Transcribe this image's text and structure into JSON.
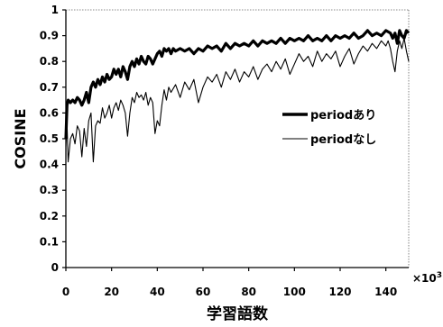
{
  "chart_data": {
    "type": "line",
    "xlabel": "学習語数",
    "ylabel": "COSINE",
    "x_multiplier": {
      "base": "×10",
      "exponent": "3"
    },
    "xlim": [
      0,
      150
    ],
    "ylim": [
      0,
      1
    ],
    "x_ticks": [
      0,
      20,
      40,
      60,
      80,
      100,
      120,
      140
    ],
    "y_ticks": [
      0,
      0.1,
      0.2,
      0.3,
      0.4,
      0.5,
      0.6,
      0.7,
      0.8,
      0.9,
      1
    ],
    "y_tick_labels": [
      "0",
      "0.1",
      "0.2",
      "0.3",
      "0.4",
      "0.5",
      "0.6",
      "0.7",
      "0.8",
      "0.9",
      "1"
    ],
    "grid": false,
    "legend_position": "right",
    "series": [
      {
        "name": "periodあり",
        "style": "thick",
        "color": "#000000",
        "points": [
          [
            0,
            0.5
          ],
          [
            0.5,
            0.63
          ],
          [
            1,
            0.65
          ],
          [
            2,
            0.64
          ],
          [
            3,
            0.65
          ],
          [
            4,
            0.64
          ],
          [
            5,
            0.66
          ],
          [
            6,
            0.65
          ],
          [
            7,
            0.63
          ],
          [
            8,
            0.65
          ],
          [
            9,
            0.68
          ],
          [
            10,
            0.64
          ],
          [
            11,
            0.7
          ],
          [
            12,
            0.72
          ],
          [
            13,
            0.7
          ],
          [
            14,
            0.73
          ],
          [
            15,
            0.71
          ],
          [
            16,
            0.74
          ],
          [
            17,
            0.72
          ],
          [
            18,
            0.75
          ],
          [
            19,
            0.73
          ],
          [
            20,
            0.74
          ],
          [
            21,
            0.77
          ],
          [
            22,
            0.75
          ],
          [
            23,
            0.77
          ],
          [
            24,
            0.74
          ],
          [
            25,
            0.78
          ],
          [
            26,
            0.76
          ],
          [
            27,
            0.73
          ],
          [
            28,
            0.78
          ],
          [
            29,
            0.8
          ],
          [
            30,
            0.78
          ],
          [
            31,
            0.81
          ],
          [
            32,
            0.79
          ],
          [
            33,
            0.82
          ],
          [
            34,
            0.8
          ],
          [
            35,
            0.79
          ],
          [
            36,
            0.82
          ],
          [
            37,
            0.81
          ],
          [
            38,
            0.79
          ],
          [
            39,
            0.81
          ],
          [
            40,
            0.83
          ],
          [
            41,
            0.84
          ],
          [
            42,
            0.82
          ],
          [
            43,
            0.85
          ],
          [
            44,
            0.84
          ],
          [
            45,
            0.85
          ],
          [
            46,
            0.83
          ],
          [
            47,
            0.85
          ],
          [
            48,
            0.84
          ],
          [
            50,
            0.85
          ],
          [
            52,
            0.84
          ],
          [
            54,
            0.85
          ],
          [
            56,
            0.83
          ],
          [
            58,
            0.85
          ],
          [
            60,
            0.84
          ],
          [
            62,
            0.86
          ],
          [
            64,
            0.85
          ],
          [
            66,
            0.86
          ],
          [
            68,
            0.84
          ],
          [
            70,
            0.87
          ],
          [
            72,
            0.85
          ],
          [
            74,
            0.87
          ],
          [
            76,
            0.86
          ],
          [
            78,
            0.87
          ],
          [
            80,
            0.86
          ],
          [
            82,
            0.88
          ],
          [
            84,
            0.86
          ],
          [
            86,
            0.88
          ],
          [
            88,
            0.87
          ],
          [
            90,
            0.88
          ],
          [
            92,
            0.87
          ],
          [
            94,
            0.89
          ],
          [
            96,
            0.87
          ],
          [
            98,
            0.89
          ],
          [
            100,
            0.88
          ],
          [
            102,
            0.89
          ],
          [
            104,
            0.88
          ],
          [
            106,
            0.9
          ],
          [
            108,
            0.88
          ],
          [
            110,
            0.89
          ],
          [
            112,
            0.88
          ],
          [
            114,
            0.9
          ],
          [
            116,
            0.88
          ],
          [
            118,
            0.9
          ],
          [
            120,
            0.89
          ],
          [
            122,
            0.9
          ],
          [
            124,
            0.89
          ],
          [
            126,
            0.91
          ],
          [
            128,
            0.89
          ],
          [
            130,
            0.9
          ],
          [
            132,
            0.92
          ],
          [
            134,
            0.9
          ],
          [
            136,
            0.91
          ],
          [
            138,
            0.9
          ],
          [
            140,
            0.92
          ],
          [
            142,
            0.91
          ],
          [
            143,
            0.89
          ],
          [
            144,
            0.91
          ],
          [
            145,
            0.87
          ],
          [
            146,
            0.92
          ],
          [
            147,
            0.9
          ],
          [
            148,
            0.89
          ],
          [
            149,
            0.92
          ],
          [
            150,
            0.91
          ]
        ]
      },
      {
        "name": "periodなし",
        "style": "thin",
        "color": "#000000",
        "points": [
          [
            0,
            0.47
          ],
          [
            0.5,
            0.56
          ],
          [
            1,
            0.41
          ],
          [
            2,
            0.5
          ],
          [
            3,
            0.52
          ],
          [
            4,
            0.48
          ],
          [
            5,
            0.55
          ],
          [
            6,
            0.53
          ],
          [
            7,
            0.43
          ],
          [
            8,
            0.54
          ],
          [
            9,
            0.47
          ],
          [
            10,
            0.57
          ],
          [
            11,
            0.6
          ],
          [
            12,
            0.41
          ],
          [
            13,
            0.55
          ],
          [
            14,
            0.57
          ],
          [
            15,
            0.56
          ],
          [
            16,
            0.62
          ],
          [
            17,
            0.58
          ],
          [
            18,
            0.6
          ],
          [
            19,
            0.63
          ],
          [
            20,
            0.58
          ],
          [
            21,
            0.62
          ],
          [
            22,
            0.64
          ],
          [
            23,
            0.61
          ],
          [
            24,
            0.65
          ],
          [
            25,
            0.63
          ],
          [
            26,
            0.6
          ],
          [
            27,
            0.51
          ],
          [
            28,
            0.6
          ],
          [
            29,
            0.66
          ],
          [
            30,
            0.64
          ],
          [
            31,
            0.68
          ],
          [
            32,
            0.66
          ],
          [
            33,
            0.67
          ],
          [
            34,
            0.65
          ],
          [
            35,
            0.68
          ],
          [
            36,
            0.63
          ],
          [
            37,
            0.66
          ],
          [
            38,
            0.64
          ],
          [
            39,
            0.52
          ],
          [
            40,
            0.57
          ],
          [
            41,
            0.55
          ],
          [
            42,
            0.63
          ],
          [
            43,
            0.69
          ],
          [
            44,
            0.65
          ],
          [
            45,
            0.7
          ],
          [
            46,
            0.68
          ],
          [
            48,
            0.71
          ],
          [
            50,
            0.66
          ],
          [
            52,
            0.72
          ],
          [
            54,
            0.69
          ],
          [
            56,
            0.73
          ],
          [
            58,
            0.64
          ],
          [
            60,
            0.7
          ],
          [
            62,
            0.74
          ],
          [
            64,
            0.72
          ],
          [
            66,
            0.75
          ],
          [
            68,
            0.7
          ],
          [
            70,
            0.76
          ],
          [
            72,
            0.73
          ],
          [
            74,
            0.77
          ],
          [
            76,
            0.72
          ],
          [
            78,
            0.76
          ],
          [
            80,
            0.74
          ],
          [
            82,
            0.78
          ],
          [
            84,
            0.73
          ],
          [
            86,
            0.77
          ],
          [
            88,
            0.79
          ],
          [
            90,
            0.76
          ],
          [
            92,
            0.8
          ],
          [
            94,
            0.77
          ],
          [
            96,
            0.81
          ],
          [
            98,
            0.75
          ],
          [
            100,
            0.79
          ],
          [
            102,
            0.83
          ],
          [
            104,
            0.8
          ],
          [
            106,
            0.82
          ],
          [
            108,
            0.78
          ],
          [
            110,
            0.84
          ],
          [
            112,
            0.8
          ],
          [
            114,
            0.83
          ],
          [
            116,
            0.81
          ],
          [
            118,
            0.84
          ],
          [
            120,
            0.78
          ],
          [
            122,
            0.82
          ],
          [
            124,
            0.85
          ],
          [
            126,
            0.79
          ],
          [
            128,
            0.83
          ],
          [
            130,
            0.86
          ],
          [
            132,
            0.84
          ],
          [
            134,
            0.87
          ],
          [
            136,
            0.85
          ],
          [
            138,
            0.88
          ],
          [
            140,
            0.86
          ],
          [
            141,
            0.88
          ],
          [
            142,
            0.85
          ],
          [
            143,
            0.8
          ],
          [
            144,
            0.76
          ],
          [
            145,
            0.84
          ],
          [
            146,
            0.88
          ],
          [
            147,
            0.85
          ],
          [
            148,
            0.89
          ],
          [
            149,
            0.84
          ],
          [
            150,
            0.8
          ]
        ]
      }
    ]
  }
}
